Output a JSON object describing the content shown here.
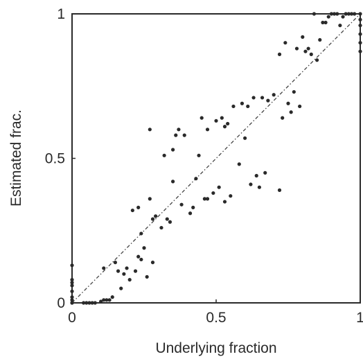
{
  "chart_data": {
    "type": "scatter",
    "xlabel": "Underlying fraction",
    "ylabel": "Estimated frac.",
    "xlim": [
      0,
      1
    ],
    "ylim": [
      0,
      1
    ],
    "xticks": [
      {
        "value": 0,
        "label": "0"
      },
      {
        "value": 0.5,
        "label": "0.5"
      },
      {
        "value": 1,
        "label": "1"
      }
    ],
    "yticks": [
      {
        "value": 0,
        "label": "0"
      },
      {
        "value": 0.5,
        "label": "0.5"
      },
      {
        "value": 1,
        "label": "1"
      }
    ],
    "grid": false,
    "reference_line": {
      "from": [
        0,
        0
      ],
      "to": [
        1,
        1
      ],
      "style": "dash-dot"
    },
    "colors": {
      "points": "#2a2a2a",
      "axes": "#2a2a2a",
      "reference": "#444444"
    },
    "series": [
      {
        "x": [
          0.0,
          0.0,
          0.0,
          0.0,
          0.0,
          0.0,
          0.0,
          0.0,
          0.0,
          0.04,
          0.05,
          0.06,
          0.07,
          0.08,
          0.1,
          0.11,
          0.12,
          0.13,
          0.14,
          0.11,
          0.15,
          0.17,
          0.16,
          0.18,
          0.19,
          0.2,
          0.21,
          0.23,
          0.23,
          0.25,
          0.26,
          0.27,
          0.24,
          0.27,
          0.28,
          0.22,
          0.24,
          0.28,
          0.29,
          0.31,
          0.32,
          0.33,
          0.35,
          0.34,
          0.36,
          0.37,
          0.38,
          0.39,
          0.35,
          0.41,
          0.43,
          0.42,
          0.44,
          0.45,
          0.46,
          0.47,
          0.47,
          0.49,
          0.5,
          0.51,
          0.52,
          0.53,
          0.54,
          0.53,
          0.55,
          0.56,
          0.58,
          0.59,
          0.6,
          0.61,
          0.62,
          0.63,
          0.64,
          0.65,
          0.66,
          0.67,
          0.68,
          0.7,
          0.72,
          0.73,
          0.74,
          0.72,
          0.75,
          0.76,
          0.77,
          0.78,
          0.79,
          0.8,
          0.81,
          0.82,
          0.83,
          0.84,
          0.85,
          0.86,
          0.87,
          0.88,
          0.89,
          0.9,
          0.91,
          0.92,
          0.93,
          0.94,
          0.95,
          0.96,
          0.97,
          0.98,
          1.0,
          1.0,
          1.0,
          1.0,
          1.0,
          1.0
        ],
        "y": [
          0.0,
          0.02,
          0.04,
          0.07,
          0.08,
          0.06,
          0.13,
          0.01,
          0.0,
          0.0,
          0.0,
          0.0,
          0.0,
          0.0,
          0.005,
          0.01,
          0.01,
          0.01,
          0.02,
          0.12,
          0.14,
          0.05,
          0.11,
          0.1,
          0.12,
          0.08,
          0.32,
          0.33,
          0.16,
          0.19,
          0.09,
          0.36,
          0.15,
          0.6,
          0.29,
          0.11,
          0.24,
          0.14,
          0.3,
          0.26,
          0.51,
          0.29,
          0.42,
          0.28,
          0.58,
          0.6,
          0.34,
          0.58,
          0.53,
          0.31,
          0.43,
          0.33,
          0.51,
          0.64,
          0.36,
          0.6,
          0.36,
          0.38,
          0.63,
          0.4,
          0.64,
          0.35,
          0.62,
          0.61,
          0.37,
          0.68,
          0.48,
          0.69,
          0.57,
          0.68,
          0.41,
          0.71,
          0.44,
          0.4,
          0.71,
          0.45,
          0.7,
          0.72,
          0.86,
          0.64,
          0.9,
          0.39,
          0.69,
          0.66,
          0.73,
          0.88,
          0.68,
          0.92,
          0.87,
          0.88,
          0.86,
          1.0,
          0.84,
          0.91,
          0.97,
          0.97,
          0.99,
          1.0,
          1.0,
          1.0,
          0.96,
          0.99,
          1.0,
          1.0,
          1.0,
          1.0,
          1.0,
          0.98,
          0.96,
          0.93,
          0.9,
          0.87
        ]
      }
    ]
  }
}
